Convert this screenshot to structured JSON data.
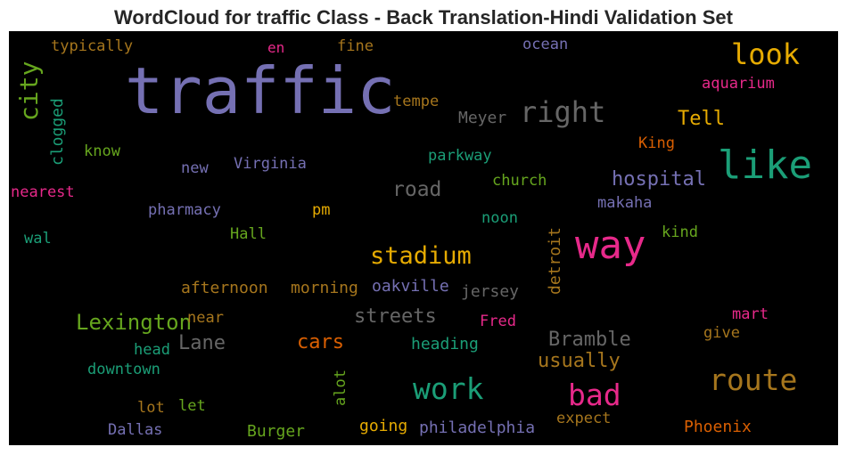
{
  "chart_data": {
    "type": "wordcloud",
    "title": "WordCloud for traffic Class - Back Translation-Hindi Validation Set",
    "words": [
      {
        "text": "traffic",
        "color": "#7570b3"
      },
      {
        "text": "typically",
        "color": "#a6761d"
      },
      {
        "text": "en",
        "color": "#e7298a"
      },
      {
        "text": "fine",
        "color": "#a6761d"
      },
      {
        "text": "ocean",
        "color": "#7570b3"
      },
      {
        "text": "look",
        "color": "#e6ab02"
      },
      {
        "text": "city",
        "color": "#66a61e"
      },
      {
        "text": "clogged",
        "color": "#1b9e77"
      },
      {
        "text": "aquarium",
        "color": "#e7298a"
      },
      {
        "text": "tempe",
        "color": "#a6761d"
      },
      {
        "text": "right",
        "color": "#666666"
      },
      {
        "text": "Meyer",
        "color": "#666666"
      },
      {
        "text": "Tell",
        "color": "#e6ab02"
      },
      {
        "text": "like",
        "color": "#1b9e77"
      },
      {
        "text": "know",
        "color": "#66a61e"
      },
      {
        "text": "King",
        "color": "#d95f02"
      },
      {
        "text": "parkway",
        "color": "#1b9e77"
      },
      {
        "text": "new",
        "color": "#7570b3"
      },
      {
        "text": "Virginia",
        "color": "#7570b3"
      },
      {
        "text": "hospital",
        "color": "#7570b3"
      },
      {
        "text": "church",
        "color": "#66a61e"
      },
      {
        "text": "road",
        "color": "#666666"
      },
      {
        "text": "nearest",
        "color": "#e7298a"
      },
      {
        "text": "makaha",
        "color": "#7570b3"
      },
      {
        "text": "pharmacy",
        "color": "#7570b3"
      },
      {
        "text": "pm",
        "color": "#e6ab02"
      },
      {
        "text": "noon",
        "color": "#1b9e77"
      },
      {
        "text": "way",
        "color": "#e7298a"
      },
      {
        "text": "detroit",
        "color": "#a6761d"
      },
      {
        "text": "wal",
        "color": "#1b9e77"
      },
      {
        "text": "Hall",
        "color": "#66a61e"
      },
      {
        "text": "kind",
        "color": "#66a61e"
      },
      {
        "text": "stadium",
        "color": "#e6ab02"
      },
      {
        "text": "afternoon",
        "color": "#a6761d"
      },
      {
        "text": "morning",
        "color": "#a6761d"
      },
      {
        "text": "oakville",
        "color": "#7570b3"
      },
      {
        "text": "jersey",
        "color": "#666666"
      },
      {
        "text": "Lexington",
        "color": "#66a61e"
      },
      {
        "text": "near",
        "color": "#a6761d"
      },
      {
        "text": "streets",
        "color": "#666666"
      },
      {
        "text": "Fred",
        "color": "#e7298a"
      },
      {
        "text": "mart",
        "color": "#e7298a"
      },
      {
        "text": "give",
        "color": "#a6761d"
      },
      {
        "text": "Lane",
        "color": "#666666"
      },
      {
        "text": "cars",
        "color": "#d95f02"
      },
      {
        "text": "heading",
        "color": "#1b9e77"
      },
      {
        "text": "Bramble",
        "color": "#666666"
      },
      {
        "text": "head",
        "color": "#1b9e77"
      },
      {
        "text": "usually",
        "color": "#a6761d"
      },
      {
        "text": "downtown",
        "color": "#1b9e77"
      },
      {
        "text": "route",
        "color": "#a6761d"
      },
      {
        "text": "work",
        "color": "#1b9e77"
      },
      {
        "text": "alot",
        "color": "#66a61e"
      },
      {
        "text": "bad",
        "color": "#e7298a"
      },
      {
        "text": "lot",
        "color": "#a6761d"
      },
      {
        "text": "let",
        "color": "#66a61e"
      },
      {
        "text": "expect",
        "color": "#a6761d"
      },
      {
        "text": "going",
        "color": "#e6ab02"
      },
      {
        "text": "philadelphia",
        "color": "#7570b3"
      },
      {
        "text": "Dallas",
        "color": "#7570b3"
      },
      {
        "text": "Burger",
        "color": "#66a61e"
      },
      {
        "text": "Phoenix",
        "color": "#d95f02"
      }
    ]
  }
}
